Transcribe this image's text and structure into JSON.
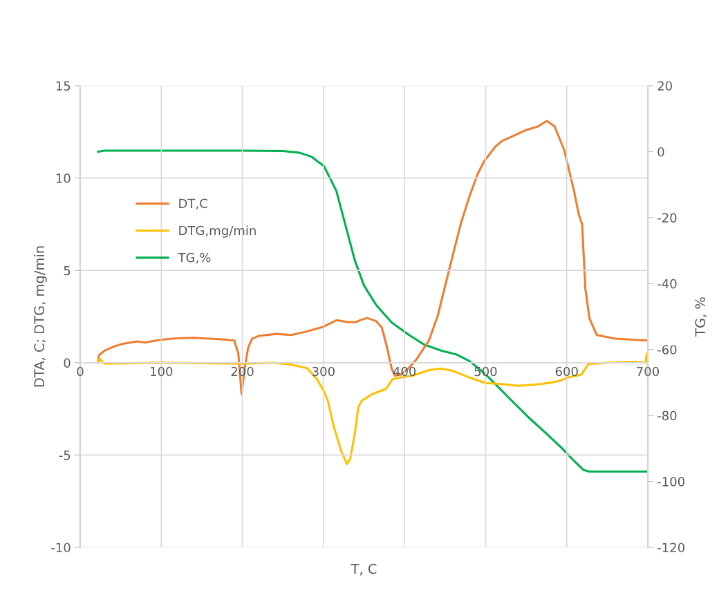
{
  "chart_data": {
    "type": "line",
    "xlabel": "T, C",
    "ylabel": "DTA, C; DTG, mg/min",
    "y2label": "TG, %",
    "xlim": [
      0,
      700
    ],
    "xticks": [
      0,
      100,
      200,
      300,
      400,
      500,
      600,
      700
    ],
    "ylim": [
      -10,
      15
    ],
    "yticks": [
      -10,
      -5,
      0,
      5,
      10,
      15
    ],
    "y2lim": [
      -120,
      20
    ],
    "y2ticks": [
      -120,
      -100,
      -80,
      -60,
      -40,
      -20,
      0,
      20
    ],
    "grid": true,
    "legend": "left",
    "marker": "none",
    "line_style": "solid",
    "series": [
      {
        "name": "DT,C",
        "color": "#ed7d31",
        "x": [
          22,
          23,
          30,
          40,
          50,
          70,
          80,
          100,
          120,
          140,
          160,
          180,
          190,
          195,
          199,
          203,
          207,
          212,
          220,
          242,
          260,
          280,
          300,
          316,
          330,
          340,
          345,
          354,
          365,
          372,
          378,
          384,
          388,
          395,
          405,
          415,
          424,
          430,
          441,
          455,
          469.5,
          480,
          490,
          498,
          512,
          520,
          535,
          550,
          565,
          575.5,
          585,
          597,
          609,
          615,
          619,
          623,
          628,
          637,
          660,
          700
        ],
        "values": [
          0.0,
          0.4,
          0.65,
          0.85,
          1.0,
          1.15,
          1.1,
          1.25,
          1.32,
          1.35,
          1.3,
          1.25,
          1.2,
          0.5,
          -1.7,
          -0.3,
          0.8,
          1.3,
          1.45,
          1.56,
          1.5,
          1.7,
          1.95,
          2.3,
          2.2,
          2.2,
          2.3,
          2.42,
          2.25,
          1.9,
          0.9,
          -0.3,
          -0.7,
          -0.65,
          -0.3,
          0.2,
          0.8,
          1.2,
          2.55,
          5.04,
          7.55,
          9.0,
          10.2,
          10.9,
          11.7,
          12.0,
          12.3,
          12.6,
          12.8,
          13.09,
          12.8,
          11.5,
          9.3,
          8.0,
          7.5,
          4.0,
          2.4,
          1.5,
          1.3,
          1.2
        ]
      },
      {
        "name": "DTG,mg/min",
        "color": "#ffc000",
        "x": [
          22,
          24,
          30,
          100,
          200,
          240,
          260,
          280,
          292,
          300,
          305,
          313,
          322,
          329,
          333,
          339,
          343,
          347,
          360,
          377,
          385,
          395,
          410,
          430,
          444.7,
          460,
          480,
          500,
          521,
          540,
          570,
          590,
          603,
          618,
          627,
          650,
          680,
          697,
          699,
          700
        ],
        "values": [
          0.1,
          0.2,
          -0.05,
          0.0,
          -0.05,
          0.0,
          -0.1,
          -0.3,
          -0.9,
          -1.5,
          -2.0,
          -3.5,
          -4.8,
          -5.49,
          -5.2,
          -3.74,
          -2.4,
          -2.07,
          -1.7,
          -1.42,
          -0.9,
          -0.8,
          -0.7,
          -0.4,
          -0.32,
          -0.45,
          -0.8,
          -1.1,
          -1.16,
          -1.25,
          -1.15,
          -1.0,
          -0.78,
          -0.64,
          -0.07,
          0.0,
          0.05,
          0.0,
          0.5,
          -0.1
        ]
      },
      {
        "name": "TG,%",
        "color": "#00b050",
        "axis": "y2",
        "x": [
          22,
          30,
          200,
          250,
          270,
          285,
          293,
          300.4,
          308,
          316,
          327.4,
          338.7,
          350,
          365,
          384,
          405,
          424,
          445,
          464,
          480,
          495,
          506,
          530,
          553,
          575,
          594.4,
          610,
          620.6,
          627,
          700
        ],
        "values": [
          0,
          0.3,
          0.3,
          0.2,
          -0.3,
          -1.5,
          -3,
          -4.3,
          -8,
          -12,
          -22.5,
          -33,
          -40.6,
          -46.5,
          -51.8,
          -55.5,
          -58.5,
          -60.3,
          -61.5,
          -63.5,
          -66.5,
          -69,
          -75,
          -80.6,
          -85.5,
          -90,
          -94,
          -96.5,
          -97,
          -97
        ]
      }
    ]
  }
}
